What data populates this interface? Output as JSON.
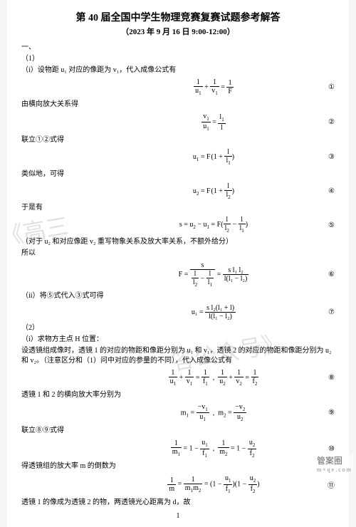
{
  "title": "第 40 届全国中学生物理竞赛复赛试题参考解答",
  "subtitle": "（2023 年 9 月 16 日 9:00-12:00）",
  "sec_one": "一、",
  "p1": "（1）",
  "line_i": "（i）设物距 u₁ 对应的像距为 v₁，代入成像公式有",
  "eq1": "1/u₁ + 1/v₁ = 1/F",
  "tag1": "①",
  "line_lat": "由横向放大关系得",
  "eq2": "v₁/u₁ = l₁/l",
  "tag2": "②",
  "line_join12": "联立①②式得",
  "eq3": "u₁ = F(1 + l/l₁)",
  "tag3": "③",
  "line_sim": "类似地，可得",
  "eq4": "u₂ = F(1 + l/l₂)",
  "tag4": "④",
  "line_so": "于是有",
  "eq5": "s = u₂ − u₁ = F(l/l₂ − l/l₁)",
  "tag5": "⑤",
  "note5": "（对于 u₂ 和对应像距 v₂ 重写物象关系及放大率关系，不额外给分）",
  "line_therefore": "所以",
  "eq6_left": "F =",
  "eq6_frac1_num": "s",
  "eq6_frac1_den": "l/l₂ − l/l₁",
  "eq6_eq": "=",
  "eq6_frac2_num": "s l₁ l₂",
  "eq6_frac2_den": "l(l₁ − l₂)",
  "tag6": "⑥",
  "line_ii": "（ii）将⑤式代入③式可得",
  "eq7_left": "u₁ =",
  "eq7_num": "s l₂(l₁ + l)",
  "eq7_den": "l(l₁ − l₂)",
  "tag7": "⑦",
  "p2": "（2）",
  "line_H": "（i）求物方主点 H 位置：",
  "line_lens_setup": "设透镜组成像时，透镜 1 的对应的物距和像距分别为 u₁ 和 v₁，透镜 2 的对应的物距和像距分别为 u₂ 和 v₂。（注意区分和（1）问中对应的参量的不同），代入成像公式有",
  "eq8a": "1/u₁ + 1/v₁ = 1/f₁",
  "eq8b": "1/u₂ + 1/v₂ = 1/f₂",
  "tag8": "⑧",
  "line_mag": "透镜 1 和 2 的横向放大率分别为",
  "eq9a": "m₁ = −v₁/u₁",
  "eq9b": "m₂ = −v₂/u₂",
  "tag9": "⑨",
  "line_join89": "联立⑧⑨式得",
  "eq10a": "1/m₁ = 1 − u₁/f₁",
  "eq10b": "1/m₂ = 1 − u₂/f₂",
  "tag10": "⑩",
  "line_total_mag": "得透镜组的放大率 m 的倒数为",
  "eq11": "1/m = 1/(m₁m₂) = (1 − u₁/f₁)(1 − u₂/f₂)",
  "tag11": "⑪",
  "line_dist": "透镜 1 的像成为透镜 2 的物，两透镜光心距离为 d，故",
  "page_num": "1",
  "watermark1": "《高三",
  "watermark2": "答公众号》",
  "corner_brand": "管案圈",
  "corner_sub": "m × q e . c o m"
}
